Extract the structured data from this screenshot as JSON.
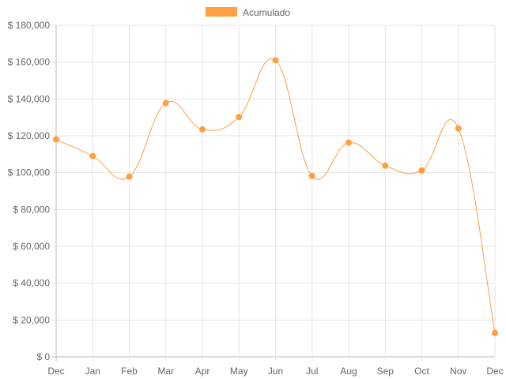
{
  "chart_data": {
    "type": "line",
    "categories": [
      "Dec",
      "Jan",
      "Feb",
      "Mar",
      "Apr",
      "May",
      "Jun",
      "Jul",
      "Aug",
      "Sep",
      "Oct",
      "Nov",
      "Dec"
    ],
    "series": [
      {
        "name": "Acumulado",
        "color": "#ff9f40",
        "values": [
          118000,
          109000,
          97800,
          137800,
          123500,
          130200,
          161000,
          98200,
          116300,
          103800,
          101200,
          124000,
          13000
        ]
      }
    ],
    "y_tick_labels": [
      "$ 0",
      "$ 20,000",
      "$ 40,000",
      "$ 60,000",
      "$ 80,000",
      "$ 100,000",
      "$ 120,000",
      "$ 140,000",
      "$ 160,000",
      "$ 180,000"
    ],
    "ylim": [
      0,
      180000
    ],
    "grid": true,
    "legend_position": "top",
    "smooth": true
  }
}
